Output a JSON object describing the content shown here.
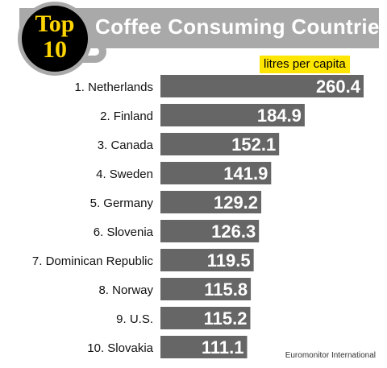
{
  "header": {
    "badge_top": "Top",
    "badge_ten": "10",
    "title": "Coffee Consuming Countries",
    "unit": "litres per capita"
  },
  "source": "Euromonitor International",
  "colors": {
    "bar": "#666666",
    "header": "#a9a9a9",
    "badge_text": "#ffd500",
    "unit_highlight": "#ffe600"
  },
  "chart_data": {
    "type": "bar",
    "orientation": "horizontal",
    "title": "Coffee Consuming Countries",
    "unit": "litres per capita",
    "categories": [
      "1. Netherlands",
      "2. Finland",
      "3. Canada",
      "4. Sweden",
      "5. Germany",
      "6. Slovenia",
      "7. Dominican Republic",
      "8. Norway",
      "9. U.S.",
      "10. Slovakia"
    ],
    "values": [
      260.4,
      184.9,
      152.1,
      141.9,
      129.2,
      126.3,
      119.5,
      115.8,
      115.2,
      111.1
    ],
    "value_labels": [
      "260.4",
      "184.9",
      "152.1",
      "141.9",
      "129.2",
      "126.3",
      "119.5",
      "115.8",
      "115.2",
      "111.1"
    ],
    "legend": "none",
    "grid": false
  }
}
